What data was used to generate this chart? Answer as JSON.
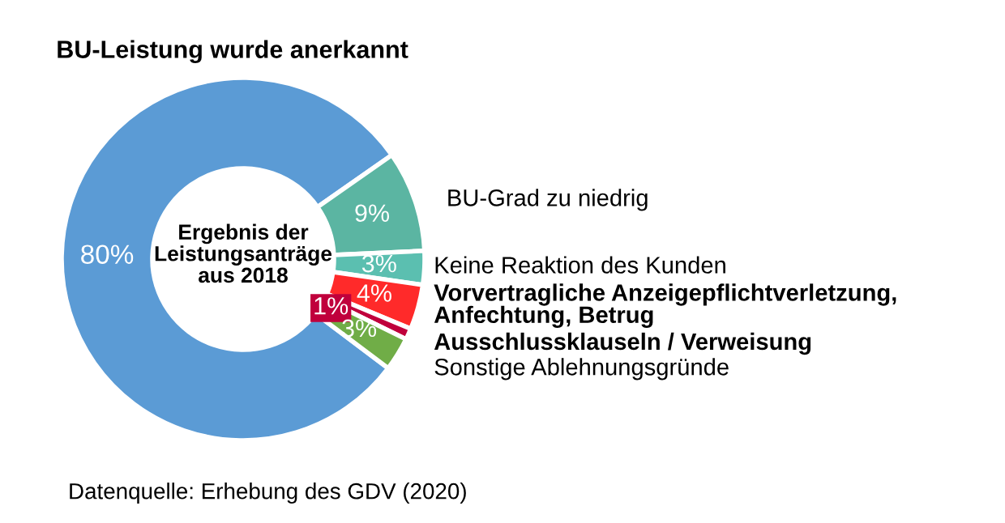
{
  "chart_data": {
    "type": "donut",
    "title": "Ergebnis der Leistungsanträge aus 2018",
    "categories": [
      "BU-Leistung wurde anerkannt",
      "BU-Grad zu niedrig",
      "Keine Reaktion des Kunden",
      "Vorvertragliche Anzeigepflichtverletzung, Anfechtung, Betrug",
      "Ausschlussklauseln / Verweisung",
      "Sonstige Ablehnungsgründe"
    ],
    "values": [
      80,
      9,
      3,
      4,
      1,
      3
    ],
    "value_labels": [
      "80%",
      "9%",
      "3%",
      "4%",
      "1%",
      "3%"
    ],
    "colors": [
      "#5b9bd5",
      "#5bb5a2",
      "#5bbfb0",
      "#ff2a2a",
      "#c0003c",
      "#70ad47"
    ],
    "annotations": [
      "Datenquelle: Erhebung des GDV (2020)"
    ],
    "legend": false
  }
}
